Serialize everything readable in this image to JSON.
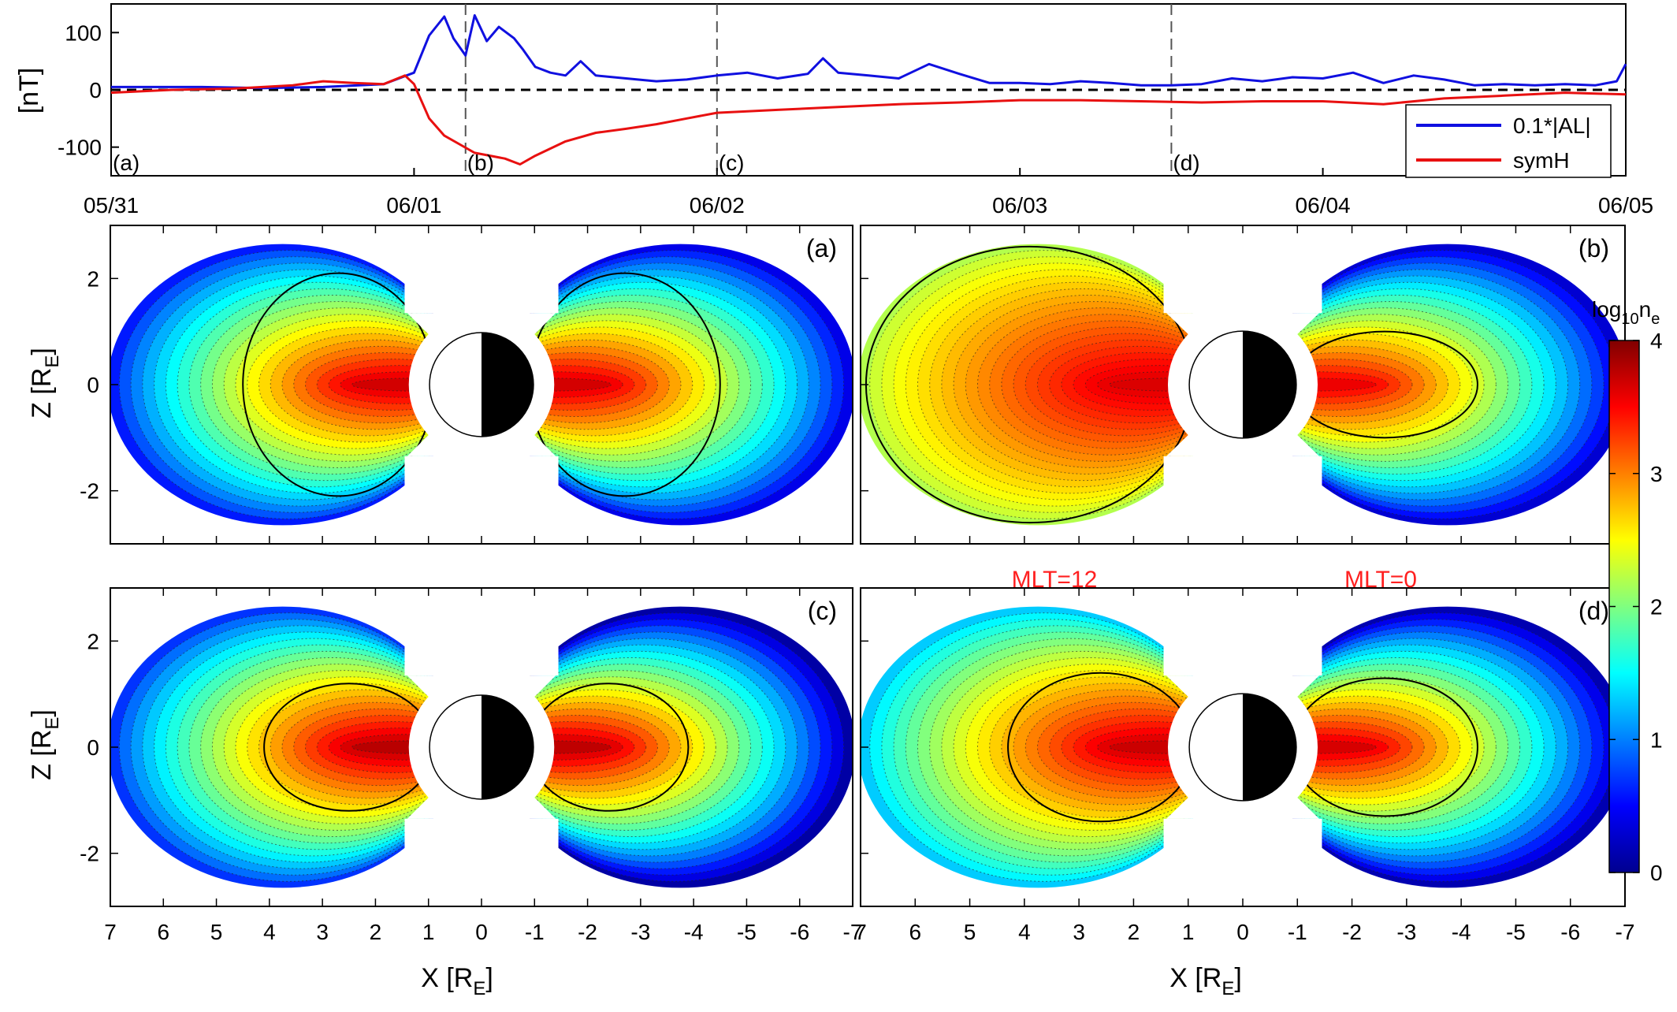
{
  "chart_data": [
    {
      "type": "line",
      "id": "timeseries",
      "ylabel": "[nT]",
      "ylim": [
        -150,
        150
      ],
      "yticks": [
        100,
        0,
        -100
      ],
      "ytick_labels": [
        "100",
        "0",
        "-100"
      ],
      "xlim_days": [
        0,
        5
      ],
      "date_ticks": [
        {
          "day": 0,
          "label": "05/31"
        },
        {
          "day": 1,
          "label": "06/01"
        },
        {
          "day": 2,
          "label": "06/02"
        },
        {
          "day": 3,
          "label": "06/03"
        },
        {
          "day": 4,
          "label": "06/04"
        },
        {
          "day": 5,
          "label": "06/05"
        }
      ],
      "zero_line": "dashed",
      "markers": [
        {
          "label": "(a)",
          "day": 0.0
        },
        {
          "label": "(b)",
          "day": 1.17
        },
        {
          "label": "(c)",
          "day": 2.0
        },
        {
          "label": "(d)",
          "day": 3.5
        }
      ],
      "legend_position": "bottom-right",
      "series": [
        {
          "name": "0.1*|AL|",
          "color": "#1010e0",
          "points": [
            [
              0,
              5
            ],
            [
              0.3,
              5
            ],
            [
              0.5,
              3
            ],
            [
              0.7,
              5
            ],
            [
              0.9,
              10
            ],
            [
              1.0,
              30
            ],
            [
              1.05,
              95
            ],
            [
              1.1,
              128
            ],
            [
              1.13,
              90
            ],
            [
              1.17,
              60
            ],
            [
              1.2,
              130
            ],
            [
              1.24,
              85
            ],
            [
              1.28,
              110
            ],
            [
              1.33,
              90
            ],
            [
              1.36,
              70
            ],
            [
              1.4,
              40
            ],
            [
              1.45,
              30
            ],
            [
              1.5,
              25
            ],
            [
              1.55,
              50
            ],
            [
              1.6,
              25
            ],
            [
              1.7,
              20
            ],
            [
              1.8,
              15
            ],
            [
              1.9,
              18
            ],
            [
              2.0,
              25
            ],
            [
              2.1,
              30
            ],
            [
              2.2,
              20
            ],
            [
              2.3,
              28
            ],
            [
              2.35,
              55
            ],
            [
              2.4,
              30
            ],
            [
              2.5,
              25
            ],
            [
              2.6,
              20
            ],
            [
              2.7,
              45
            ],
            [
              2.8,
              28
            ],
            [
              2.9,
              12
            ],
            [
              3.0,
              12
            ],
            [
              3.1,
              10
            ],
            [
              3.2,
              15
            ],
            [
              3.3,
              12
            ],
            [
              3.4,
              8
            ],
            [
              3.5,
              8
            ],
            [
              3.6,
              10
            ],
            [
              3.7,
              20
            ],
            [
              3.8,
              15
            ],
            [
              3.9,
              22
            ],
            [
              4.0,
              20
            ],
            [
              4.1,
              30
            ],
            [
              4.2,
              12
            ],
            [
              4.3,
              25
            ],
            [
              4.4,
              18
            ],
            [
              4.5,
              8
            ],
            [
              4.6,
              10
            ],
            [
              4.7,
              8
            ],
            [
              4.8,
              10
            ],
            [
              4.9,
              8
            ],
            [
              4.97,
              15
            ],
            [
              5.0,
              45
            ]
          ]
        },
        {
          "name": "symH",
          "color": "#e81010",
          "points": [
            [
              0,
              -5
            ],
            [
              0.2,
              0
            ],
            [
              0.4,
              2
            ],
            [
              0.6,
              8
            ],
            [
              0.7,
              15
            ],
            [
              0.8,
              12
            ],
            [
              0.9,
              10
            ],
            [
              0.97,
              25
            ],
            [
              1.0,
              10
            ],
            [
              1.05,
              -50
            ],
            [
              1.1,
              -80
            ],
            [
              1.15,
              -95
            ],
            [
              1.2,
              -110
            ],
            [
              1.3,
              -120
            ],
            [
              1.35,
              -130
            ],
            [
              1.4,
              -115
            ],
            [
              1.5,
              -90
            ],
            [
              1.6,
              -75
            ],
            [
              1.7,
              -68
            ],
            [
              1.8,
              -60
            ],
            [
              1.9,
              -50
            ],
            [
              2.0,
              -40
            ],
            [
              2.2,
              -35
            ],
            [
              2.4,
              -30
            ],
            [
              2.6,
              -25
            ],
            [
              2.8,
              -22
            ],
            [
              3.0,
              -18
            ],
            [
              3.2,
              -18
            ],
            [
              3.4,
              -20
            ],
            [
              3.6,
              -22
            ],
            [
              3.8,
              -20
            ],
            [
              4.0,
              -20
            ],
            [
              4.2,
              -25
            ],
            [
              4.4,
              -15
            ],
            [
              4.6,
              -10
            ],
            [
              4.8,
              -5
            ],
            [
              5.0,
              -8
            ]
          ]
        }
      ]
    },
    {
      "type": "heatmap",
      "id": "density-maps",
      "quantity": "log10 ne",
      "xlabel": "X [R_E]",
      "ylabel": "Z [R_E]",
      "xlim": [
        7,
        -7
      ],
      "ylim": [
        -3,
        3
      ],
      "xticks": [
        7,
        6,
        5,
        4,
        3,
        2,
        1,
        0,
        -1,
        -2,
        -3,
        -4,
        -5,
        -6,
        -7
      ],
      "yticks": [
        2,
        0,
        -2
      ],
      "colorbar": {
        "min": 0,
        "max": 4,
        "ticks": [
          0,
          1,
          2,
          3,
          4
        ],
        "colormap": "jet"
      },
      "annotations": [
        {
          "text": "MLT=12",
          "color": "#ff2020"
        },
        {
          "text": "MLT=0",
          "color": "#ff2020"
        }
      ],
      "panels": [
        {
          "label": "(a)",
          "day_ring": 2.1,
          "day_center": 3.8,
          "day_edge": 0.6,
          "day_solid_r": 3.0,
          "night_ring": 2.1,
          "night_center": 3.8,
          "night_edge": 0.4,
          "night_solid_r": 3.0
        },
        {
          "label": "(b)",
          "day_ring": 3.2,
          "day_center": 3.7,
          "day_edge": 2.2,
          "day_solid_r": 5.4,
          "night_ring": 1.0,
          "night_center": 3.7,
          "night_edge": 0.3,
          "night_solid_r": 2.8
        },
        {
          "label": "(c)",
          "day_ring": 1.2,
          "day_center": 3.9,
          "day_edge": 0.7,
          "day_solid_r": 2.6,
          "night_ring": 1.2,
          "night_center": 3.9,
          "night_edge": 0.1,
          "night_solid_r": 2.4
        },
        {
          "label": "(d)",
          "day_ring": 1.4,
          "day_center": 3.8,
          "day_edge": 1.3,
          "day_solid_r": 2.8,
          "night_ring": 1.3,
          "night_center": 3.8,
          "night_edge": 0.15,
          "night_solid_r": 2.8
        }
      ]
    }
  ],
  "legend": {
    "al": "0.1*|AL|",
    "symh": "symH"
  },
  "colorbar_label": {
    "base": "log",
    "sub1": "10",
    "n": "n",
    "sub2": "e"
  },
  "axis_labels": {
    "x_main": "X [R",
    "x_sub": "E",
    "x_end": "]",
    "z_main": "Z [R",
    "z_sub": "E",
    "z_end": "]"
  },
  "colors": {
    "al": "#1010e0",
    "symh": "#e81010",
    "annotation": "#ff2020"
  }
}
